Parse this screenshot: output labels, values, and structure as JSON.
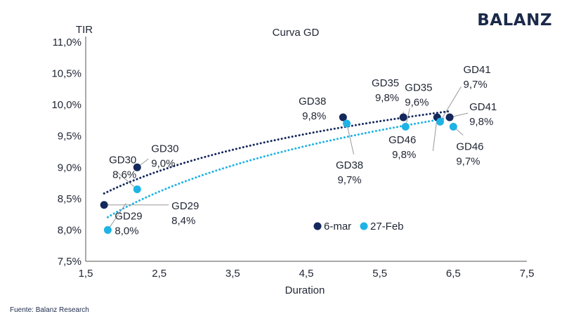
{
  "brand": "BALANZ",
  "source": "Fuente: Balanz Research",
  "colors": {
    "series_a": "#14285c",
    "series_b": "#1fb3e5",
    "axis": "#555555",
    "leader": "#9a9a9a"
  },
  "chart_data": {
    "type": "scatter",
    "title": "Curva GD",
    "xlabel": "Duration",
    "ylabel": "TIR",
    "xlim": [
      1.5,
      7.5
    ],
    "ylim": [
      7.5,
      11.0
    ],
    "xticks": [
      "1,5",
      "2,5",
      "3,5",
      "4,5",
      "5,5",
      "6,5",
      "7,5"
    ],
    "yticks": [
      "7,5%",
      "8,0%",
      "8,5%",
      "9,0%",
      "9,5%",
      "10,0%",
      "10,5%",
      "11,0%"
    ],
    "grid": false,
    "legend": "bottom-right",
    "series": [
      {
        "name": "6-mar",
        "color": "#14285c",
        "trend": "logarithmic",
        "points": [
          {
            "bond": "GD29",
            "x": 1.75,
            "y": 8.4,
            "label": [
              "GD29",
              "8,4%"
            ]
          },
          {
            "bond": "GD30",
            "x": 2.2,
            "y": 9.0,
            "label": [
              "GD30",
              "9,0%"
            ]
          },
          {
            "bond": "GD38",
            "x": 5.0,
            "y": 9.8,
            "label": [
              "GD38",
              "9,8%"
            ]
          },
          {
            "bond": "GD35",
            "x": 5.82,
            "y": 9.8,
            "label": [
              "GD35",
              "9,8%"
            ]
          },
          {
            "bond": "GD46",
            "x": 6.28,
            "y": 9.8,
            "label": [
              "GD46",
              "9,8%"
            ]
          },
          {
            "bond": "GD41",
            "x": 6.45,
            "y": 9.8,
            "label": [
              "GD41",
              "9,8%"
            ]
          }
        ]
      },
      {
        "name": "27-Feb",
        "color": "#1fb3e5",
        "trend": "logarithmic",
        "points": [
          {
            "bond": "GD29",
            "x": 1.8,
            "y": 8.0,
            "label": [
              "GD29",
              "8,0%"
            ]
          },
          {
            "bond": "GD30",
            "x": 2.2,
            "y": 8.65,
            "label": [
              "GD30",
              "8,6%"
            ]
          },
          {
            "bond": "GD38",
            "x": 5.05,
            "y": 9.7,
            "label": [
              "GD38",
              "9,7%"
            ]
          },
          {
            "bond": "GD35",
            "x": 5.85,
            "y": 9.65,
            "label": [
              "GD35",
              "9,6%"
            ]
          },
          {
            "bond": "GD41",
            "x": 6.32,
            "y": 9.73,
            "label": [
              "GD41",
              "9,7%"
            ]
          },
          {
            "bond": "GD46",
            "x": 6.5,
            "y": 9.65,
            "label": [
              "GD46",
              "9,7%"
            ]
          }
        ]
      }
    ]
  }
}
